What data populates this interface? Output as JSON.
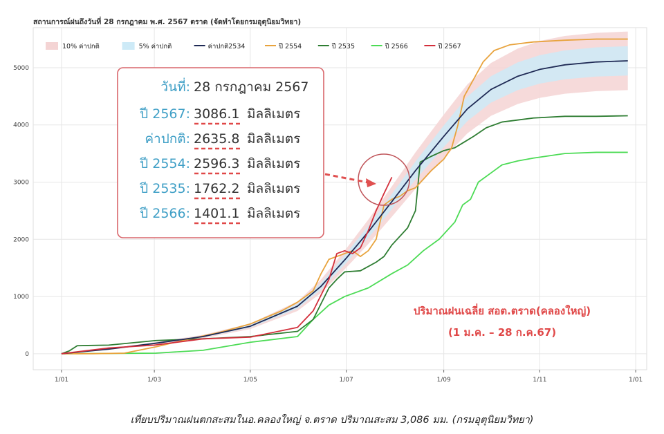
{
  "chart_data": {
    "type": "line",
    "title": "สถานการณ์ฝนถึงวันที่ 28 กรกฎาคม พ.ศ. 2567 ตราด (จัดทำโดยกรมอุตุนิยมวิทยา)",
    "xlabel": "",
    "ylabel": "",
    "ylim": [
      -280,
      5700
    ],
    "yticks": [
      0,
      1000,
      2000,
      3000,
      4000,
      5000
    ],
    "xlim": [
      -18,
      372
    ],
    "xticks": [
      {
        "day": 0,
        "label": "1/01"
      },
      {
        "day": 59,
        "label": "1/03"
      },
      {
        "day": 120,
        "label": "1/05"
      },
      {
        "day": 181,
        "label": "1/07"
      },
      {
        "day": 243,
        "label": "1/09"
      },
      {
        "day": 304,
        "label": "1/11"
      },
      {
        "day": 365,
        "label": "1/01"
      }
    ],
    "grid": true,
    "legend_position": "top-left",
    "bands": [
      {
        "name": "10% ค่าปกติ",
        "color": "#f4d4d4",
        "pct": 0.1,
        "of": "ค่าปกติ2534"
      },
      {
        "name": "5% ค่าปกติ",
        "color": "#cdeaf7",
        "pct": 0.05,
        "of": "ค่าปกติ2534"
      }
    ],
    "series": [
      {
        "name": "ค่าปกติ2534",
        "color": "#1f2a55",
        "x": [
          0,
          30,
          59,
          90,
          120,
          150,
          165,
          181,
          195,
          210,
          225,
          243,
          258,
          273,
          290,
          304,
          320,
          340,
          360
        ],
        "y": [
          0,
          80,
          180,
          300,
          480,
          830,
          1180,
          1670,
          2130,
          2660,
          3200,
          3800,
          4280,
          4620,
          4850,
          4970,
          5050,
          5100,
          5120
        ]
      },
      {
        "name": "ปี 2554",
        "color": "#e8a33d",
        "x": [
          0,
          20,
          40,
          60,
          80,
          100,
          120,
          140,
          150,
          160,
          165,
          170,
          175,
          180,
          185,
          190,
          195,
          200,
          205,
          210,
          215,
          220,
          225,
          235,
          243,
          248,
          252,
          256,
          262,
          268,
          275,
          285,
          300,
          320,
          340,
          360
        ],
        "y": [
          0,
          0,
          10,
          120,
          250,
          370,
          520,
          750,
          900,
          1100,
          1400,
          1650,
          1700,
          1750,
          1800,
          1700,
          1800,
          2000,
          2600,
          2700,
          2750,
          2850,
          2900,
          3200,
          3400,
          3600,
          4000,
          4500,
          4800,
          5100,
          5300,
          5400,
          5450,
          5480,
          5500,
          5500
        ]
      },
      {
        "name": "ปี 2535",
        "color": "#2e7d32",
        "x": [
          0,
          5,
          10,
          30,
          60,
          90,
          120,
          150,
          160,
          170,
          175,
          180,
          190,
          200,
          205,
          210,
          220,
          225,
          228,
          235,
          243,
          250,
          256,
          262,
          270,
          280,
          300,
          320,
          340,
          360
        ],
        "y": [
          0,
          50,
          140,
          150,
          230,
          260,
          300,
          390,
          600,
          1150,
          1300,
          1430,
          1450,
          1600,
          1700,
          1900,
          2200,
          2500,
          3350,
          3450,
          3550,
          3600,
          3700,
          3800,
          3950,
          4050,
          4120,
          4150,
          4150,
          4160
        ]
      },
      {
        "name": "ปี 2566",
        "color": "#4cdb55",
        "x": [
          0,
          60,
          90,
          120,
          150,
          160,
          170,
          180,
          195,
          210,
          220,
          230,
          240,
          245,
          250,
          255,
          260,
          265,
          270,
          275,
          280,
          290,
          300,
          320,
          340,
          360
        ],
        "y": [
          0,
          10,
          60,
          200,
          300,
          600,
          850,
          1000,
          1150,
          1400,
          1550,
          1800,
          2000,
          2150,
          2300,
          2600,
          2700,
          3000,
          3100,
          3200,
          3300,
          3370,
          3420,
          3500,
          3520,
          3520
        ]
      },
      {
        "name": "ปี 2567",
        "color": "#d32f3b",
        "x": [
          0,
          30,
          59,
          90,
          120,
          150,
          160,
          170,
          175,
          180,
          185,
          190,
          195,
          200,
          205,
          210
        ],
        "y": [
          0,
          100,
          150,
          260,
          290,
          460,
          750,
          1300,
          1750,
          1800,
          1750,
          1850,
          2150,
          2500,
          2800,
          3086.1
        ]
      }
    ],
    "annotations": {
      "date_label": "วันที่:",
      "date_value": "28 กรกฎาคม 2567",
      "rows": [
        {
          "label": "ปี 2567:",
          "value": "3086.1",
          "unit": "มิลลิเมตร"
        },
        {
          "label": "ค่าปกติ:",
          "value": "2635.8",
          "unit": "มิลลิเมตร"
        },
        {
          "label": "ปี 2554:",
          "value": "2596.3",
          "unit": "มิลลิเมตร"
        },
        {
          "label": "ปี 2535:",
          "value": "1762.2",
          "unit": "มิลลิเมตร"
        },
        {
          "label": "ปี 2566:",
          "value": "1401.1",
          "unit": "มิลลิเมตร"
        }
      ],
      "station_line1": "ปริมาณฝนเฉลี่ย สอต.ตราด(คลองใหญ่)",
      "station_line2": "(1 ม.ค. – 28 ก.ค.67)"
    }
  },
  "caption": "เทียบปริมาณฝนตกสะสมในอ.คลองใหญ่ จ.ตราด ปริมาณสะสม 3,086 มม. (กรมอุตุนิยมวิทยา)",
  "colors": {
    "annotation_border": "#d9666b",
    "highlight_circle": "#c0555a",
    "arrow": "#e05050",
    "underline": "#e04848",
    "grid": "#e6e6e6"
  }
}
